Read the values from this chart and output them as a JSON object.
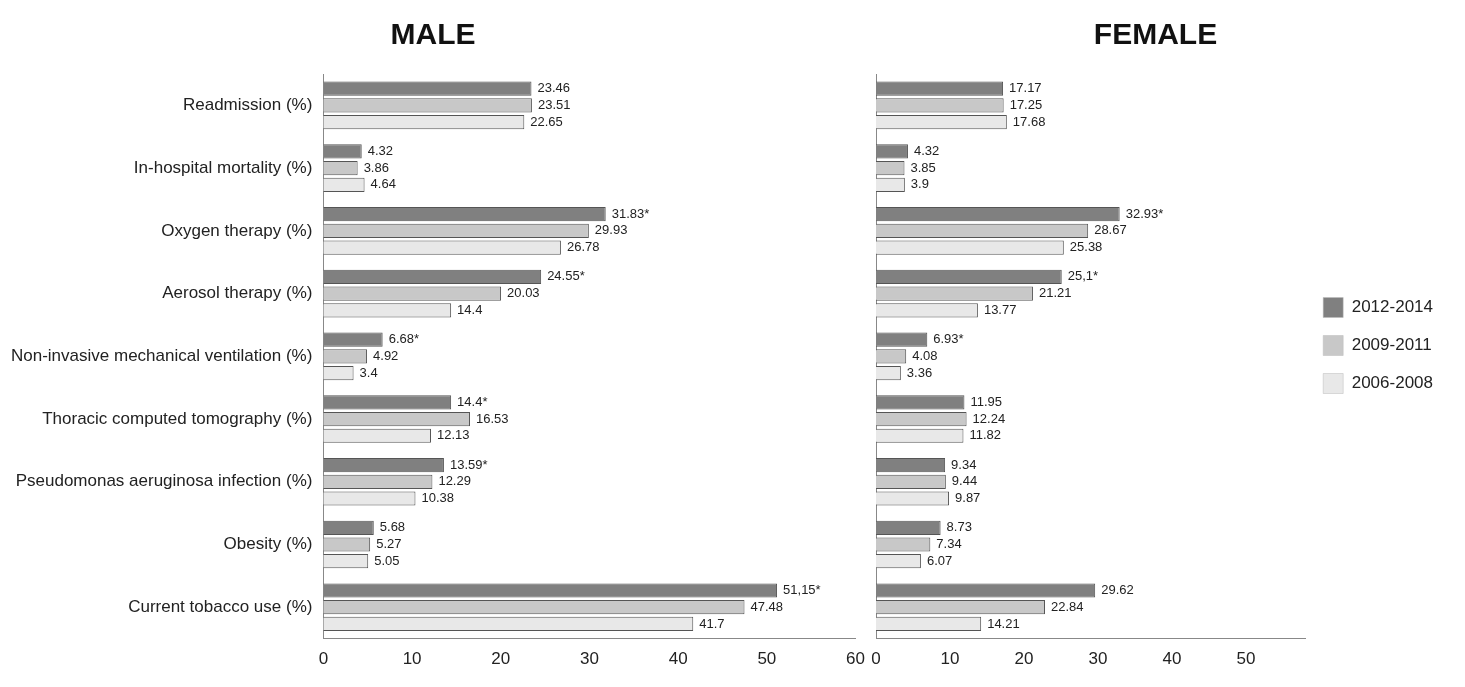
{
  "chart_data": [
    {
      "type": "bar",
      "title": "MALE",
      "orientation": "horizontal",
      "categories": [
        "Readmission (%)",
        "In-hospital mortality (%)",
        "Oxygen therapy (%)",
        "Aerosol therapy (%)",
        "Non-invasive mechanical ventilation (%)",
        "Thoracic computed tomography (%)",
        "Pseudomonas aeruginosa infection (%)",
        "Obesity (%)",
        "Current tobacco use (%)"
      ],
      "xlim": [
        0,
        60
      ],
      "xticks": [
        0,
        10,
        20,
        30,
        40,
        50,
        60
      ],
      "grid": false,
      "legend": false,
      "series": [
        {
          "color": "#808080",
          "values": [
            23.46,
            4.32,
            31.83,
            24.55,
            6.68,
            14.4,
            13.59,
            5.68,
            51.15
          ],
          "value_labels": [
            "23.46",
            "4.32",
            "31.83*",
            "24.55*",
            "6.68*",
            "14.4*",
            "13.59*",
            "5.68",
            "51,15*"
          ]
        },
        {
          "color": "#c8c8c8",
          "values": [
            23.51,
            3.86,
            29.93,
            20.03,
            4.92,
            16.53,
            12.29,
            5.27,
            47.48
          ],
          "value_labels": [
            "23.51",
            "3.86",
            "29.93",
            "20.03",
            "4.92",
            "16.53",
            "12.29",
            "5.27",
            "47.48"
          ]
        },
        {
          "color": "#e8e8e8",
          "values": [
            22.65,
            4.64,
            26.78,
            14.4,
            3.4,
            12.13,
            10.38,
            5.05,
            41.7
          ],
          "value_labels": [
            "22.65",
            "4.64",
            "26.78",
            "14.4",
            "3.4",
            "12.13",
            "10.38",
            "5.05",
            "41.7"
          ]
        }
      ]
    },
    {
      "type": "bar",
      "title": "FEMALE",
      "orientation": "horizontal",
      "categories": [
        null,
        null,
        null,
        null,
        null,
        null,
        null,
        null,
        null
      ],
      "tick_labels": "x",
      "xlim": [
        0,
        58
      ],
      "xticks": [
        0,
        10,
        20,
        30,
        40,
        50
      ],
      "grid": false,
      "legend": "right",
      "series": [
        {
          "name": "2012-2014",
          "color": "#808080",
          "values": [
            17.17,
            4.32,
            32.93,
            25.1,
            6.93,
            11.95,
            9.34,
            8.73,
            29.62
          ],
          "value_labels": [
            "17.17",
            "4.32",
            "32.93*",
            "25,1*",
            "6.93*",
            "11.95",
            "9.34",
            "8.73",
            "29.62"
          ]
        },
        {
          "name": "2009-2011",
          "color": "#c8c8c8",
          "values": [
            17.25,
            3.85,
            28.67,
            21.21,
            4.08,
            12.24,
            9.44,
            7.34,
            22.84
          ],
          "value_labels": [
            "17.25",
            "3.85",
            "28.67",
            "21.21",
            "4.08",
            "12.24",
            "9.44",
            "7.34",
            "22.84"
          ]
        },
        {
          "name": "2006-2008",
          "color": "#e8e8e8",
          "values": [
            17.68,
            3.9,
            25.38,
            13.77,
            3.36,
            11.82,
            9.87,
            6.07,
            14.21
          ],
          "value_labels": [
            "17.68",
            "3.9",
            "25.38",
            "13.77",
            "3.36",
            "11.82",
            "9.87",
            "6.07",
            "14.21"
          ]
        }
      ]
    }
  ]
}
